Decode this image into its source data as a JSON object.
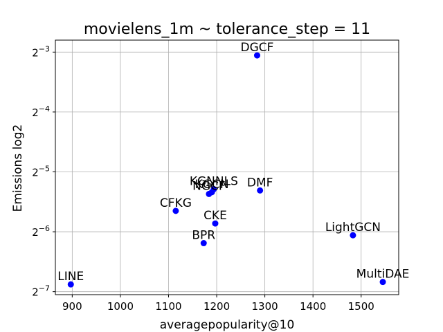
{
  "chart_data": {
    "type": "scatter",
    "title": "movielens_1m ~ tolerance_step = 11",
    "xlabel": "averagepopularity@10",
    "ylabel": "Emissions log2",
    "xlim": [
      865,
      1578
    ],
    "ylog2lim": [
      -7.05,
      -2.8
    ],
    "y_scale": "log2",
    "x_ticks": [
      "900",
      "1000",
      "1100",
      "1200",
      "1300",
      "1400",
      "1500"
    ],
    "y_ticks": [
      {
        "base": "2",
        "exp": "−3",
        "value": 0.125
      },
      {
        "base": "2",
        "exp": "−4",
        "value": 0.0625
      },
      {
        "base": "2",
        "exp": "−5",
        "value": 0.03125
      },
      {
        "base": "2",
        "exp": "−6",
        "value": 0.015625
      },
      {
        "base": "2",
        "exp": "−7",
        "value": 0.0078125
      }
    ],
    "grid": true,
    "marker_color": "#0000ff",
    "points": [
      {
        "label": "DGCF",
        "x": 1284,
        "y": 0.1203
      },
      {
        "label": "KGNNLS",
        "x": 1194,
        "y": 0.0256
      },
      {
        "label": "KGCN",
        "x": 1190,
        "y": 0.0247
      },
      {
        "label": "NGCF",
        "x": 1184,
        "y": 0.0242
      },
      {
        "label": "DMF",
        "x": 1290,
        "y": 0.0252
      },
      {
        "label": "CFKG",
        "x": 1115,
        "y": 0.0199
      },
      {
        "label": "CKE",
        "x": 1197,
        "y": 0.0172
      },
      {
        "label": "BPR",
        "x": 1173,
        "y": 0.0137
      },
      {
        "label": "LightGCN",
        "x": 1483,
        "y": 0.015
      },
      {
        "label": "LINE",
        "x": 897,
        "y": 0.0085
      },
      {
        "label": "MultiDAE",
        "x": 1545,
        "y": 0.00874
      }
    ]
  }
}
